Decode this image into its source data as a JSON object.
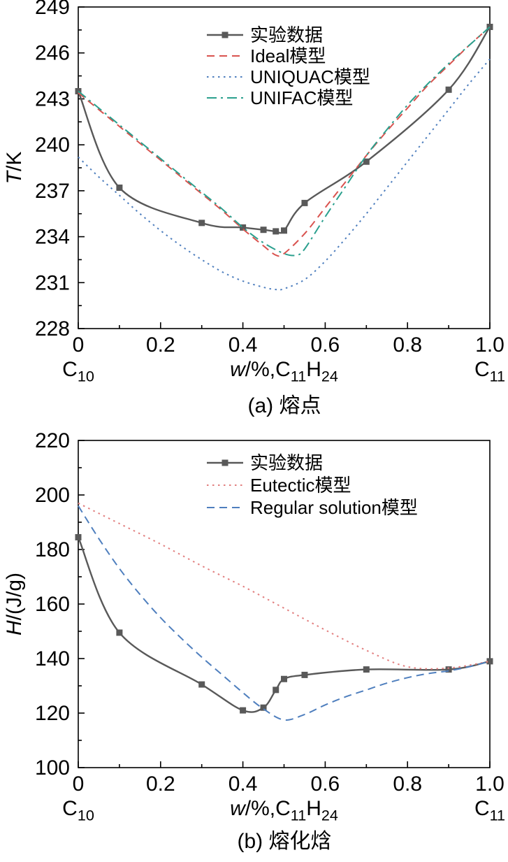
{
  "page": {
    "background": "#ffffff"
  },
  "chart_data": [
    {
      "id": "melting-point",
      "type": "line",
      "title": "(a) 熔点",
      "xlabel": "w/%,C11H24",
      "ylabel": "T/K",
      "xlabel_parts": [
        {
          "text": "w",
          "italic": true
        },
        {
          "text": "/%,C"
        },
        {
          "text": "11",
          "sub": true
        },
        {
          "text": "H"
        },
        {
          "text": "24",
          "sub": true
        }
      ],
      "ylabel_parts": [
        {
          "text": "T",
          "italic": true
        },
        {
          "text": "/K"
        }
      ],
      "corner_left_parts": [
        {
          "text": "C"
        },
        {
          "text": "10",
          "sub": true
        }
      ],
      "corner_right_parts": [
        {
          "text": "C"
        },
        {
          "text": "11",
          "sub": true
        }
      ],
      "xlim": [
        0,
        1
      ],
      "ylim": [
        228,
        249
      ],
      "x_ticks": [
        {
          "v": 0,
          "label": "0"
        },
        {
          "v": 0.2,
          "label": "0.2"
        },
        {
          "v": 0.4,
          "label": "0.4"
        },
        {
          "v": 0.6,
          "label": "0.6"
        },
        {
          "v": 0.8,
          "label": "0.8"
        },
        {
          "v": 1,
          "label": "1.0"
        }
      ],
      "y_ticks": [
        {
          "v": 228,
          "label": "228"
        },
        {
          "v": 231,
          "label": "231"
        },
        {
          "v": 234,
          "label": "234"
        },
        {
          "v": 237,
          "label": "237"
        },
        {
          "v": 240,
          "label": "240"
        },
        {
          "v": 243,
          "label": "243"
        },
        {
          "v": 246,
          "label": "246"
        },
        {
          "v": 249,
          "label": "249"
        }
      ],
      "x_minor_step": 0.1,
      "y_minor_step": 1.5,
      "grid": false,
      "legend_position": "top-center",
      "series": [
        {
          "name": "experimental",
          "label": "实验数据",
          "color": "#595959",
          "style": "solid",
          "marker": "square",
          "points": [
            [
              0,
              243.5
            ],
            [
              0.1,
              237.2
            ],
            [
              0.3,
              234.9
            ],
            [
              0.4,
              234.6
            ],
            [
              0.45,
              234.45
            ],
            [
              0.48,
              234.35
            ],
            [
              0.5,
              234.4
            ],
            [
              0.55,
              236.2
            ],
            [
              0.7,
              238.9
            ],
            [
              0.9,
              243.6
            ],
            [
              1,
              247.7
            ]
          ]
        },
        {
          "name": "ideal",
          "label": "Ideal模型",
          "color": "#d9534f",
          "style": "dashed",
          "points": [
            [
              0,
              243.4
            ],
            [
              0.05,
              242.3
            ],
            [
              0.1,
              241.2
            ],
            [
              0.15,
              240.1
            ],
            [
              0.2,
              239.0
            ],
            [
              0.25,
              237.9
            ],
            [
              0.3,
              236.8
            ],
            [
              0.35,
              235.7
            ],
            [
              0.4,
              234.5
            ],
            [
              0.45,
              233.4
            ],
            [
              0.48,
              232.8
            ],
            [
              0.5,
              232.9
            ],
            [
              0.55,
              234.2
            ],
            [
              0.6,
              235.9
            ],
            [
              0.65,
              237.6
            ],
            [
              0.7,
              239.3
            ],
            [
              0.75,
              240.9
            ],
            [
              0.8,
              242.4
            ],
            [
              0.85,
              243.9
            ],
            [
              0.9,
              245.2
            ],
            [
              0.95,
              246.5
            ],
            [
              1,
              247.7
            ]
          ]
        },
        {
          "name": "uniquac",
          "label": "UNIQUAC模型",
          "color": "#4f7fbe",
          "style": "dotted",
          "points": [
            [
              0,
              239.2
            ],
            [
              0.05,
              237.9
            ],
            [
              0.1,
              236.7
            ],
            [
              0.15,
              235.5
            ],
            [
              0.2,
              234.4
            ],
            [
              0.25,
              233.4
            ],
            [
              0.3,
              232.5
            ],
            [
              0.35,
              231.7
            ],
            [
              0.4,
              231.1
            ],
            [
              0.45,
              230.7
            ],
            [
              0.48,
              230.55
            ],
            [
              0.5,
              230.6
            ],
            [
              0.55,
              231.2
            ],
            [
              0.6,
              232.4
            ],
            [
              0.65,
              233.9
            ],
            [
              0.7,
              235.5
            ],
            [
              0.75,
              237.2
            ],
            [
              0.8,
              238.9
            ],
            [
              0.85,
              240.6
            ],
            [
              0.9,
              242.3
            ],
            [
              0.95,
              244.0
            ],
            [
              1,
              245.6
            ]
          ]
        },
        {
          "name": "unifac",
          "label": "UNIFAC模型",
          "color": "#2ba08e",
          "style": "dashdot",
          "points": [
            [
              0,
              243.5
            ],
            [
              0.05,
              242.4
            ],
            [
              0.1,
              241.3
            ],
            [
              0.15,
              240.2
            ],
            [
              0.2,
              239.1
            ],
            [
              0.25,
              238.0
            ],
            [
              0.3,
              236.9
            ],
            [
              0.35,
              235.8
            ],
            [
              0.4,
              234.6
            ],
            [
              0.45,
              233.6
            ],
            [
              0.5,
              232.9
            ],
            [
              0.53,
              232.8
            ],
            [
              0.55,
              233.2
            ],
            [
              0.6,
              235.3
            ],
            [
              0.65,
              237.3
            ],
            [
              0.7,
              239.3
            ],
            [
              0.75,
              241.0
            ],
            [
              0.8,
              242.6
            ],
            [
              0.85,
              244.0
            ],
            [
              0.9,
              245.3
            ],
            [
              0.95,
              246.5
            ],
            [
              1,
              247.7
            ]
          ]
        }
      ]
    },
    {
      "id": "melting-enthalpy",
      "type": "line",
      "title": "(b) 熔化焓",
      "xlabel": "w/%,C11H24",
      "ylabel": "H/(J/g)",
      "xlabel_parts": [
        {
          "text": "w",
          "italic": true
        },
        {
          "text": "/%,C"
        },
        {
          "text": "11",
          "sub": true
        },
        {
          "text": "H"
        },
        {
          "text": "24",
          "sub": true
        }
      ],
      "ylabel_parts": [
        {
          "text": "H",
          "italic": true
        },
        {
          "text": "/(J/g)"
        }
      ],
      "corner_left_parts": [
        {
          "text": "C"
        },
        {
          "text": "10",
          "sub": true
        }
      ],
      "corner_right_parts": [
        {
          "text": "C"
        },
        {
          "text": "11",
          "sub": true
        }
      ],
      "xlim": [
        0,
        1
      ],
      "ylim": [
        100,
        220
      ],
      "x_ticks": [
        {
          "v": 0,
          "label": "0"
        },
        {
          "v": 0.2,
          "label": "0.2"
        },
        {
          "v": 0.4,
          "label": "0.4"
        },
        {
          "v": 0.6,
          "label": "0.6"
        },
        {
          "v": 0.8,
          "label": "0.8"
        },
        {
          "v": 1,
          "label": "1.0"
        }
      ],
      "y_ticks": [
        {
          "v": 100,
          "label": "100"
        },
        {
          "v": 120,
          "label": "120"
        },
        {
          "v": 140,
          "label": "140"
        },
        {
          "v": 160,
          "label": "160"
        },
        {
          "v": 180,
          "label": "180"
        },
        {
          "v": 200,
          "label": "200"
        },
        {
          "v": 220,
          "label": "220"
        }
      ],
      "x_minor_step": 0.1,
      "y_minor_step": 10,
      "grid": false,
      "legend_position": "top-center",
      "series": [
        {
          "name": "experimental",
          "label": "实验数据",
          "color": "#595959",
          "style": "solid",
          "marker": "square",
          "points": [
            [
              0,
              184.5
            ],
            [
              0.1,
              149.5
            ],
            [
              0.3,
              130.5
            ],
            [
              0.4,
              121
            ],
            [
              0.45,
              122
            ],
            [
              0.48,
              128.5
            ],
            [
              0.5,
              132.5
            ],
            [
              0.55,
              134
            ],
            [
              0.7,
              136
            ],
            [
              0.9,
              136
            ],
            [
              1,
              139
            ]
          ]
        },
        {
          "name": "eutectic",
          "label": "Eutectic模型",
          "color": "#e27f7f",
          "style": "dotted",
          "points": [
            [
              0,
              197
            ],
            [
              0.1,
              189.5
            ],
            [
              0.2,
              182
            ],
            [
              0.3,
              174
            ],
            [
              0.4,
              166.5
            ],
            [
              0.5,
              158.5
            ],
            [
              0.6,
              150.5
            ],
            [
              0.7,
              143
            ],
            [
              0.8,
              137
            ],
            [
              0.9,
              136.5
            ],
            [
              1,
              139
            ]
          ]
        },
        {
          "name": "regular-solution",
          "label": "Regular solution模型",
          "color": "#4f7fbe",
          "style": "dashed",
          "points": [
            [
              0,
              196
            ],
            [
              0.05,
              184
            ],
            [
              0.1,
              173
            ],
            [
              0.15,
              163.5
            ],
            [
              0.2,
              155
            ],
            [
              0.25,
              147.5
            ],
            [
              0.3,
              140.5
            ],
            [
              0.35,
              134
            ],
            [
              0.4,
              127.5
            ],
            [
              0.45,
              121.5
            ],
            [
              0.5,
              117.5
            ],
            [
              0.55,
              119.5
            ],
            [
              0.6,
              123
            ],
            [
              0.65,
              126
            ],
            [
              0.7,
              128.5
            ],
            [
              0.75,
              131
            ],
            [
              0.8,
              133
            ],
            [
              0.85,
              134.5
            ],
            [
              0.9,
              135.5
            ],
            [
              0.95,
              137
            ],
            [
              1,
              139
            ]
          ]
        }
      ]
    }
  ]
}
